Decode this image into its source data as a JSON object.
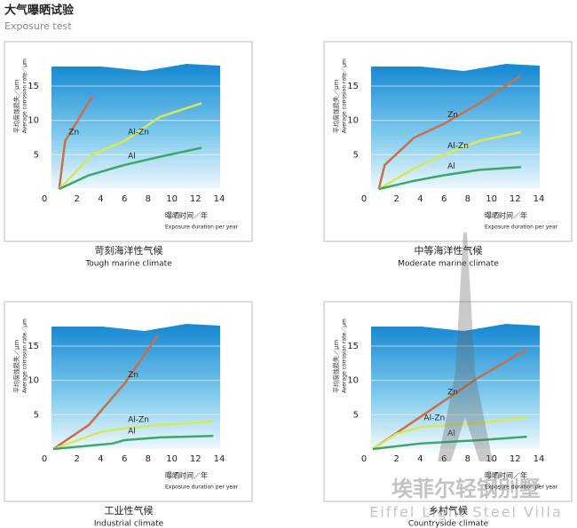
{
  "header": {
    "title": "大气曝晒试验",
    "subtitle": "Exposure test"
  },
  "watermark": {
    "title": "埃菲尔轻钢别墅",
    "subtitle": "Eiffel Light Steel Villa"
  },
  "chart_data": [
    {
      "type": "line",
      "title": "苛刻海洋性气候",
      "subtitle": "Tough marine climate",
      "y_label": "平均腐蚀损失／μm",
      "y_label_en": "Average corrosion rate／μm",
      "x_label": "曝晒时间／年",
      "x_label_en": "Exposure duration per year",
      "xlim": [
        0,
        14
      ],
      "ylim": [
        0,
        19
      ],
      "xticks": [
        0,
        2,
        4,
        6,
        8,
        10,
        12,
        14
      ],
      "yticks": [
        0,
        5,
        10,
        15
      ],
      "grid": true,
      "series": [
        {
          "name": "Zn",
          "color": "#c8704a",
          "x": [
            0.5,
            1,
            3.3
          ],
          "values": [
            0,
            7,
            13.5
          ]
        },
        {
          "name": "Al-Zn",
          "color": "#d6e85a",
          "x": [
            0.5,
            3.3,
            6,
            9,
            12.5
          ],
          "values": [
            0,
            5,
            7,
            10.5,
            12.5
          ]
        },
        {
          "name": "Al",
          "color": "#3aa86a",
          "x": [
            0.5,
            3,
            6,
            9,
            12.5
          ],
          "values": [
            0,
            2,
            3.5,
            4.7,
            6
          ]
        }
      ]
    },
    {
      "type": "line",
      "title": "中等海洋性气候",
      "subtitle": "Moderate marine climate",
      "y_label": "平均腐蚀损失／μm",
      "y_label_en": "Average corrosion rate／μm",
      "x_label": "曝晒时间／年",
      "x_label_en": "Exposure duration per year",
      "xlim": [
        0,
        14
      ],
      "ylim": [
        0,
        19
      ],
      "xticks": [
        0,
        2,
        4,
        6,
        8,
        10,
        12,
        14
      ],
      "yticks": [
        0,
        5,
        10,
        15
      ],
      "grid": true,
      "series": [
        {
          "name": "Zn",
          "color": "#c8704a",
          "x": [
            0.5,
            1,
            3.5,
            6,
            9,
            12.5
          ],
          "values": [
            0,
            3.5,
            7.5,
            9.5,
            12.5,
            16.5
          ]
        },
        {
          "name": "Al-Zn",
          "color": "#d6e85a",
          "x": [
            0.5,
            3.5,
            6,
            9,
            12.5
          ],
          "values": [
            0,
            3,
            5,
            7,
            8.3
          ]
        },
        {
          "name": "Al",
          "color": "#3aa86a",
          "x": [
            0.5,
            3.5,
            6,
            9,
            12.5
          ],
          "values": [
            0,
            1.2,
            2,
            2.8,
            3.2
          ]
        }
      ]
    },
    {
      "type": "line",
      "title": "工业性气候",
      "subtitle": "Industrial climate",
      "y_label": "平均腐蚀损失／μm",
      "y_label_en": "Average corrosion rate／μm",
      "x_label": "曝晒时间／年",
      "x_label_en": "Exposure duration per year",
      "xlim": [
        0,
        14
      ],
      "ylim": [
        0,
        19
      ],
      "xticks": [
        0,
        2,
        4,
        6,
        8,
        10,
        12,
        14
      ],
      "yticks": [
        0,
        5,
        10,
        15
      ],
      "grid": true,
      "series": [
        {
          "name": "Zn",
          "color": "#c8704a",
          "x": [
            0,
            3,
            6,
            8.8
          ],
          "values": [
            0,
            3.5,
            9.5,
            16.5
          ]
        },
        {
          "name": "Al-Zn",
          "color": "#d6e85a",
          "x": [
            0,
            4,
            6,
            9,
            13.5
          ],
          "values": [
            0,
            2.5,
            3,
            3.5,
            4
          ]
        },
        {
          "name": "Al",
          "color": "#3aa86a",
          "x": [
            0,
            5,
            6,
            9,
            13.5
          ],
          "values": [
            0,
            0.8,
            1.3,
            1.7,
            1.9
          ]
        }
      ]
    },
    {
      "type": "line",
      "title": "乡村气候",
      "subtitle": "Countryside climate",
      "y_label": "平均腐蚀损失／μm",
      "y_label_en": "Average corrosion rate／μm",
      "x_label": "曝晒时间／年",
      "x_label_en": "Exposure duration per year",
      "xlim": [
        0,
        14
      ],
      "ylim": [
        0,
        19
      ],
      "xticks": [
        0,
        2,
        4,
        6,
        8,
        10,
        12,
        14
      ],
      "yticks": [
        0,
        5,
        10,
        15
      ],
      "grid": true,
      "series": [
        {
          "name": "Zn",
          "color": "#c8704a",
          "x": [
            0,
            3,
            6,
            9,
            13
          ],
          "values": [
            0,
            3.5,
            7,
            10.5,
            14.5
          ]
        },
        {
          "name": "Al-Zn",
          "color": "#d6e85a",
          "x": [
            0,
            2,
            4,
            9,
            13
          ],
          "values": [
            0,
            2.2,
            3.2,
            3.8,
            4.6
          ]
        },
        {
          "name": "Al",
          "color": "#3aa86a",
          "x": [
            0,
            4,
            6,
            9,
            13
          ],
          "values": [
            0,
            0.8,
            1,
            1.3,
            1.8
          ]
        }
      ]
    }
  ]
}
